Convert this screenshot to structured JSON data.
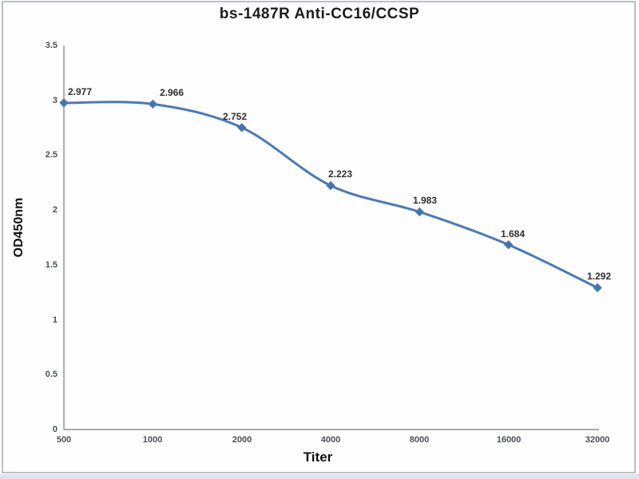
{
  "chart_data": {
    "type": "line",
    "title": "bs-1487R Anti-CC16/CCSP",
    "xlabel": "Titer",
    "ylabel": "OD450nm",
    "categories": [
      "500",
      "1000",
      "2000",
      "4000",
      "8000",
      "16000",
      "32000"
    ],
    "values": [
      2.977,
      2.966,
      2.752,
      2.223,
      1.983,
      1.684,
      1.292
    ],
    "point_labels": [
      "2.977",
      "2.966",
      "2.752",
      "2.223",
      "1.983",
      "1.684",
      "1.292"
    ],
    "yticks": [
      3.5,
      3,
      2.5,
      2,
      1.5,
      1,
      0.5,
      0
    ],
    "ytick_labels": [
      "3.5",
      "3",
      "2.5",
      "2",
      "1.5",
      "1",
      "0.5",
      "0"
    ],
    "ylim": [
      0,
      3.5
    ],
    "grid": false,
    "legend": false,
    "smooth_line": true,
    "marker_shape": "diamond",
    "line_color": "#4a7ab5",
    "marker_color": "#4474ad",
    "axis_color": "#8e8e8e",
    "frame_border_color": "#bdbfc3",
    "bottom_strip_color": "#dde3ee"
  }
}
